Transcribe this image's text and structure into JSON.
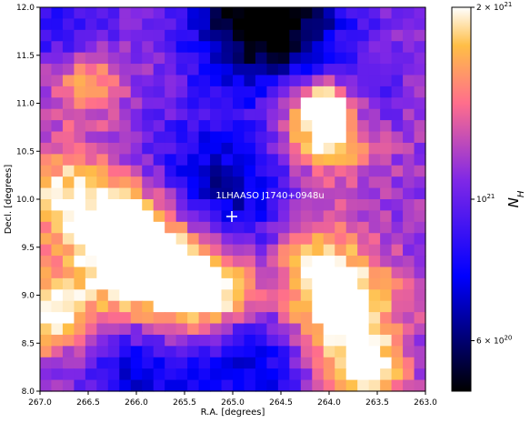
{
  "chart_data": {
    "type": "heatmap",
    "xlabel": "R.A. [degrees]",
    "ylabel": "Decl. [degrees]",
    "xlim": [
      267.0,
      263.0
    ],
    "ylim": [
      8.0,
      12.0
    ],
    "x_ticks": [
      "267.0",
      "266.5",
      "266.0",
      "265.5",
      "265.0",
      "264.5",
      "264.0",
      "263.5",
      "263.0"
    ],
    "y_ticks": [
      "8.0",
      "8.5",
      "9.0",
      "9.5",
      "10.0",
      "10.5",
      "11.0",
      "11.5",
      "12.0"
    ],
    "colormap": "gnuplot2",
    "colorbar": {
      "label": "N_H",
      "scale": "log",
      "range": [
        5e+20,
        2e+21
      ],
      "ticks": [
        {
          "value": 2e+21,
          "label": "2 × 10^21"
        },
        {
          "value": 1e+21,
          "label": "10^21"
        },
        {
          "value": 6e+20,
          "label": "6 × 10^20"
        }
      ]
    },
    "annotations": [
      {
        "text": "1LHAASO J1740+0948u",
        "ra": 265.0,
        "dec": 10.05
      }
    ],
    "marker": {
      "symbol": "+",
      "ra": 265.0,
      "dec": 9.83,
      "color": "#ffffff"
    },
    "grid_shape": [
      34,
      34
    ],
    "blobs": [
      {
        "ra": 265.2,
        "dec": 10.0,
        "sigma": 0.55,
        "amp": -0.45
      },
      {
        "ra": 264.65,
        "dec": 11.9,
        "sigma": 0.55,
        "amp": -0.7
      },
      {
        "ra": 266.7,
        "dec": 11.7,
        "sigma": 0.35,
        "amp": -0.3
      },
      {
        "ra": 265.9,
        "dec": 8.3,
        "sigma": 0.45,
        "amp": -0.4
      },
      {
        "ra": 264.8,
        "dec": 8.3,
        "sigma": 0.4,
        "amp": -0.35
      },
      {
        "ra": 263.7,
        "dec": 11.0,
        "sigma": 0.3,
        "amp": -0.3
      },
      {
        "ra": 266.1,
        "dec": 9.6,
        "sigma": 0.45,
        "amp": 0.55
      },
      {
        "ra": 265.6,
        "dec": 9.1,
        "sigma": 0.5,
        "amp": 0.55
      },
      {
        "ra": 265.2,
        "dec": 9.1,
        "sigma": 0.25,
        "amp": 0.35
      },
      {
        "ra": 264.0,
        "dec": 10.8,
        "sigma": 0.35,
        "amp": 0.65
      },
      {
        "ra": 264.05,
        "dec": 10.95,
        "sigma": 0.12,
        "amp": 0.9
      },
      {
        "ra": 263.9,
        "dec": 8.9,
        "sigma": 0.4,
        "amp": 0.55
      },
      {
        "ra": 263.6,
        "dec": 8.2,
        "sigma": 0.25,
        "amp": 0.5
      },
      {
        "ra": 266.9,
        "dec": 8.8,
        "sigma": 0.3,
        "amp": 0.45
      },
      {
        "ra": 266.55,
        "dec": 11.3,
        "sigma": 0.3,
        "amp": 0.35
      },
      {
        "ra": 266.8,
        "dec": 10.1,
        "sigma": 0.35,
        "amp": 0.3
      },
      {
        "ra": 264.2,
        "dec": 9.5,
        "sigma": 0.3,
        "amp": 0.25
      }
    ],
    "base_level": 0.4
  }
}
